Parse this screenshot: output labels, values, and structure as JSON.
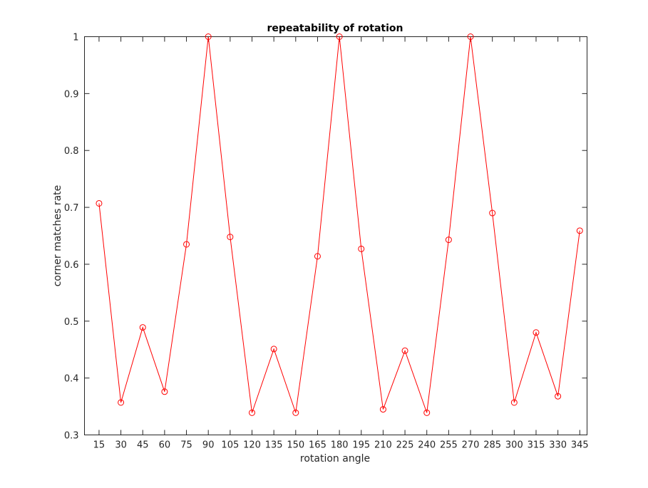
{
  "chart_data": {
    "type": "line",
    "title": "repeatability of rotation",
    "xlabel": "rotation angle",
    "ylabel": "corner matches rate",
    "xlim": [
      5,
      350
    ],
    "ylim": [
      0.3,
      1
    ],
    "x": [
      15,
      30,
      45,
      60,
      75,
      90,
      105,
      120,
      135,
      150,
      165,
      180,
      195,
      210,
      225,
      240,
      255,
      270,
      285,
      300,
      315,
      330,
      345
    ],
    "xtick_labels": [
      "15",
      "30",
      "45",
      "60",
      "75",
      "90",
      "105",
      "120",
      "135",
      "150",
      "165",
      "180",
      "195",
      "210",
      "225",
      "240",
      "255",
      "270",
      "285",
      "300",
      "315",
      "330",
      "345"
    ],
    "yticks": [
      0.3,
      0.4,
      0.5,
      0.6,
      0.7,
      0.8,
      0.9,
      1
    ],
    "ytick_labels": [
      "0.3",
      "0.4",
      "0.5",
      "0.6",
      "0.7",
      "0.8",
      "0.9",
      "1"
    ],
    "series": [
      {
        "values": [
          0.707,
          0.357,
          0.489,
          0.376,
          0.635,
          1.0,
          0.648,
          0.339,
          0.451,
          0.339,
          0.614,
          1.0,
          0.627,
          0.345,
          0.448,
          0.339,
          0.643,
          1.0,
          0.69,
          0.357,
          0.48,
          0.368,
          0.659
        ],
        "color": "#ff0000",
        "marker": "circle"
      }
    ],
    "grid": false,
    "box": true
  }
}
